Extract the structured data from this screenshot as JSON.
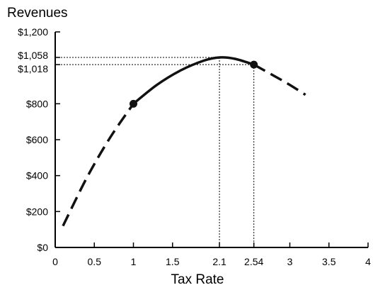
{
  "chart_data": {
    "type": "line",
    "ylabel": "Revenues",
    "xlabel": "Tax Rate",
    "x_ticks": [
      {
        "value": 0,
        "label": "0"
      },
      {
        "value": 0.5,
        "label": "0.5"
      },
      {
        "value": 1,
        "label": "1"
      },
      {
        "value": 1.5,
        "label": "1.5"
      },
      {
        "value": 2.1,
        "label": "2.1"
      },
      {
        "value": 2.54,
        "label": "2.54"
      },
      {
        "value": 3,
        "label": "3"
      },
      {
        "value": 3.5,
        "label": "3.5"
      },
      {
        "value": 4,
        "label": "4"
      }
    ],
    "y_ticks": [
      {
        "value": 0,
        "label": "$0"
      },
      {
        "value": 200,
        "label": "$200"
      },
      {
        "value": 400,
        "label": "$400"
      },
      {
        "value": 600,
        "label": "$600"
      },
      {
        "value": 800,
        "label": "$800"
      },
      {
        "value": 1018,
        "label": "$1,018"
      },
      {
        "value": 1058,
        "label": "$1,058"
      },
      {
        "value": 1200,
        "label": "$1,200"
      }
    ],
    "xlim": [
      0,
      4
    ],
    "ylim": [
      0,
      1200
    ],
    "grid": false,
    "curve": {
      "segments": [
        {
          "style": "dashed",
          "points": [
            [
              0.1,
              120
            ],
            [
              0.4,
              385
            ],
            [
              0.7,
              610
            ],
            [
              1.0,
              800
            ]
          ]
        },
        {
          "style": "solid",
          "points": [
            [
              1.0,
              800
            ],
            [
              1.3,
              905
            ],
            [
              1.6,
              985
            ],
            [
              1.9,
              1040
            ],
            [
              2.1,
              1058
            ],
            [
              2.3,
              1050
            ],
            [
              2.54,
              1018
            ]
          ]
        },
        {
          "style": "dashed",
          "points": [
            [
              2.54,
              1018
            ],
            [
              2.8,
              955
            ],
            [
              3.0,
              905
            ],
            [
              3.2,
              850
            ]
          ]
        }
      ],
      "markers": [
        [
          1.0,
          800
        ],
        [
          2.54,
          1018
        ]
      ]
    },
    "reference_lines": [
      {
        "x": 2.1,
        "y": 1058
      },
      {
        "x": 2.54,
        "y": 1018
      }
    ]
  }
}
